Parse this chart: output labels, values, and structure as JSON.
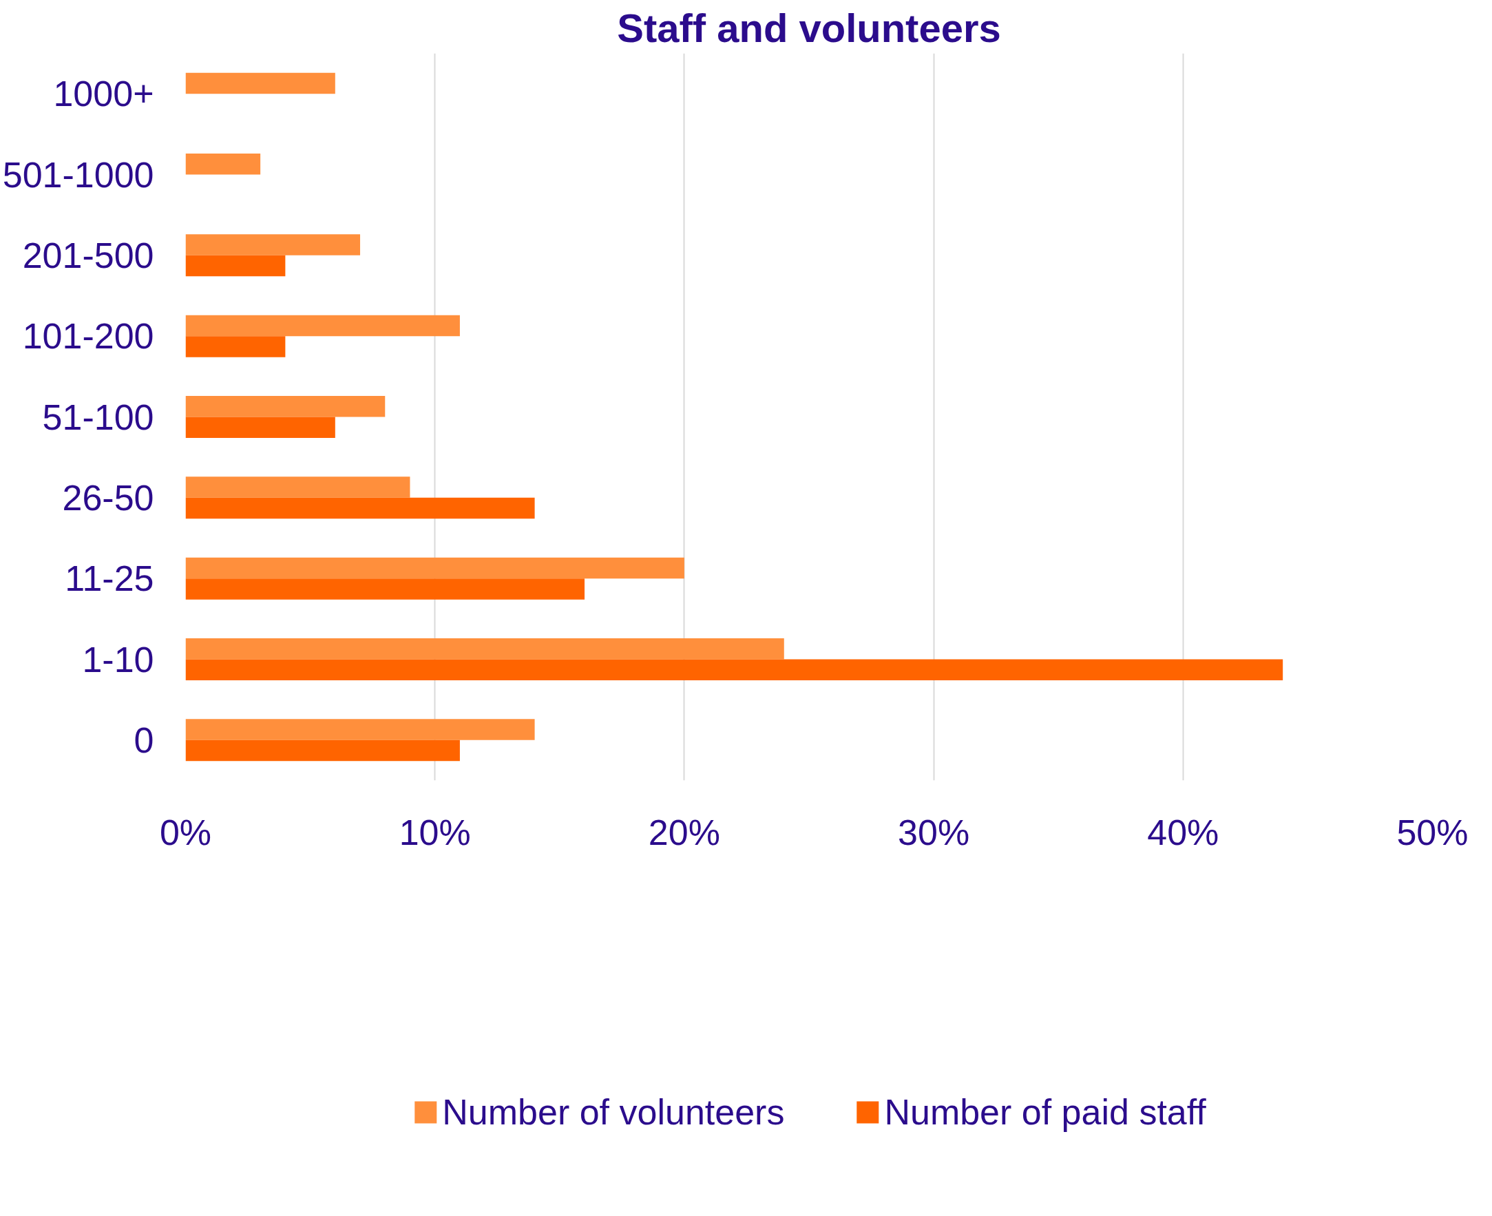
{
  "chart_data": {
    "type": "bar",
    "orientation": "horizontal",
    "title": "Staff and volunteers",
    "categories": [
      "1000+",
      "501-1000",
      "201-500",
      "101-200",
      "51-100",
      "26-50",
      "11-25",
      "1-10",
      "0"
    ],
    "series": [
      {
        "name": "Number of volunteers",
        "color": "#ff8f3c",
        "values": [
          6,
          3,
          7,
          11,
          8,
          9,
          20,
          24,
          14
        ]
      },
      {
        "name": "Number of paid staff",
        "color": "#ff6400",
        "values": [
          0,
          0,
          4,
          4,
          6,
          14,
          16,
          44,
          11
        ]
      }
    ],
    "xlim": [
      0,
      50
    ],
    "xticks": [
      {
        "value": 0,
        "label": "0%"
      },
      {
        "value": 10,
        "label": "10%"
      },
      {
        "value": 20,
        "label": "20%"
      },
      {
        "value": 30,
        "label": "30%"
      },
      {
        "value": 40,
        "label": "40%"
      },
      {
        "value": 50,
        "label": "50%"
      }
    ],
    "grid": "x",
    "legend": "bottom"
  }
}
